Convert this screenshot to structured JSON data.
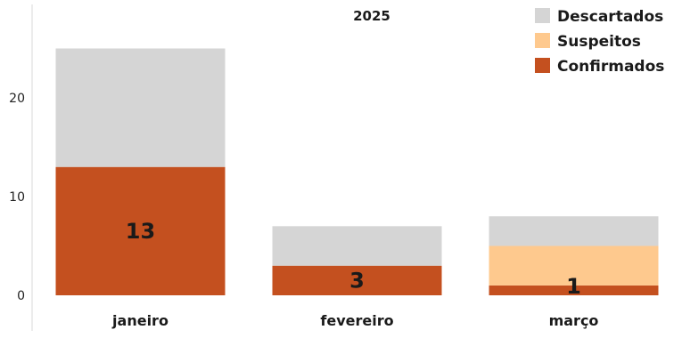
{
  "chart_data": {
    "type": "bar",
    "stacked": true,
    "title": "2025",
    "categories": [
      "janeiro",
      "fevereiro",
      "março"
    ],
    "series": [
      {
        "name": "Confirmados",
        "values": [
          13,
          3,
          1
        ],
        "color": "#c4501f"
      },
      {
        "name": "Suspeitos",
        "values": [
          0,
          0,
          4
        ],
        "color": "#fec98e"
      },
      {
        "name": "Descartados",
        "values": [
          12,
          4,
          3
        ],
        "color": "#d5d5d5"
      }
    ],
    "data_labels": [
      "13",
      "3",
      "1"
    ],
    "yticks": [
      0,
      10,
      20
    ],
    "ylim": [
      -1,
      28
    ],
    "legend_placement": "top-right",
    "legend_order": [
      "Descartados",
      "Suspeitos",
      "Confirmados"
    ],
    "grid": false
  }
}
